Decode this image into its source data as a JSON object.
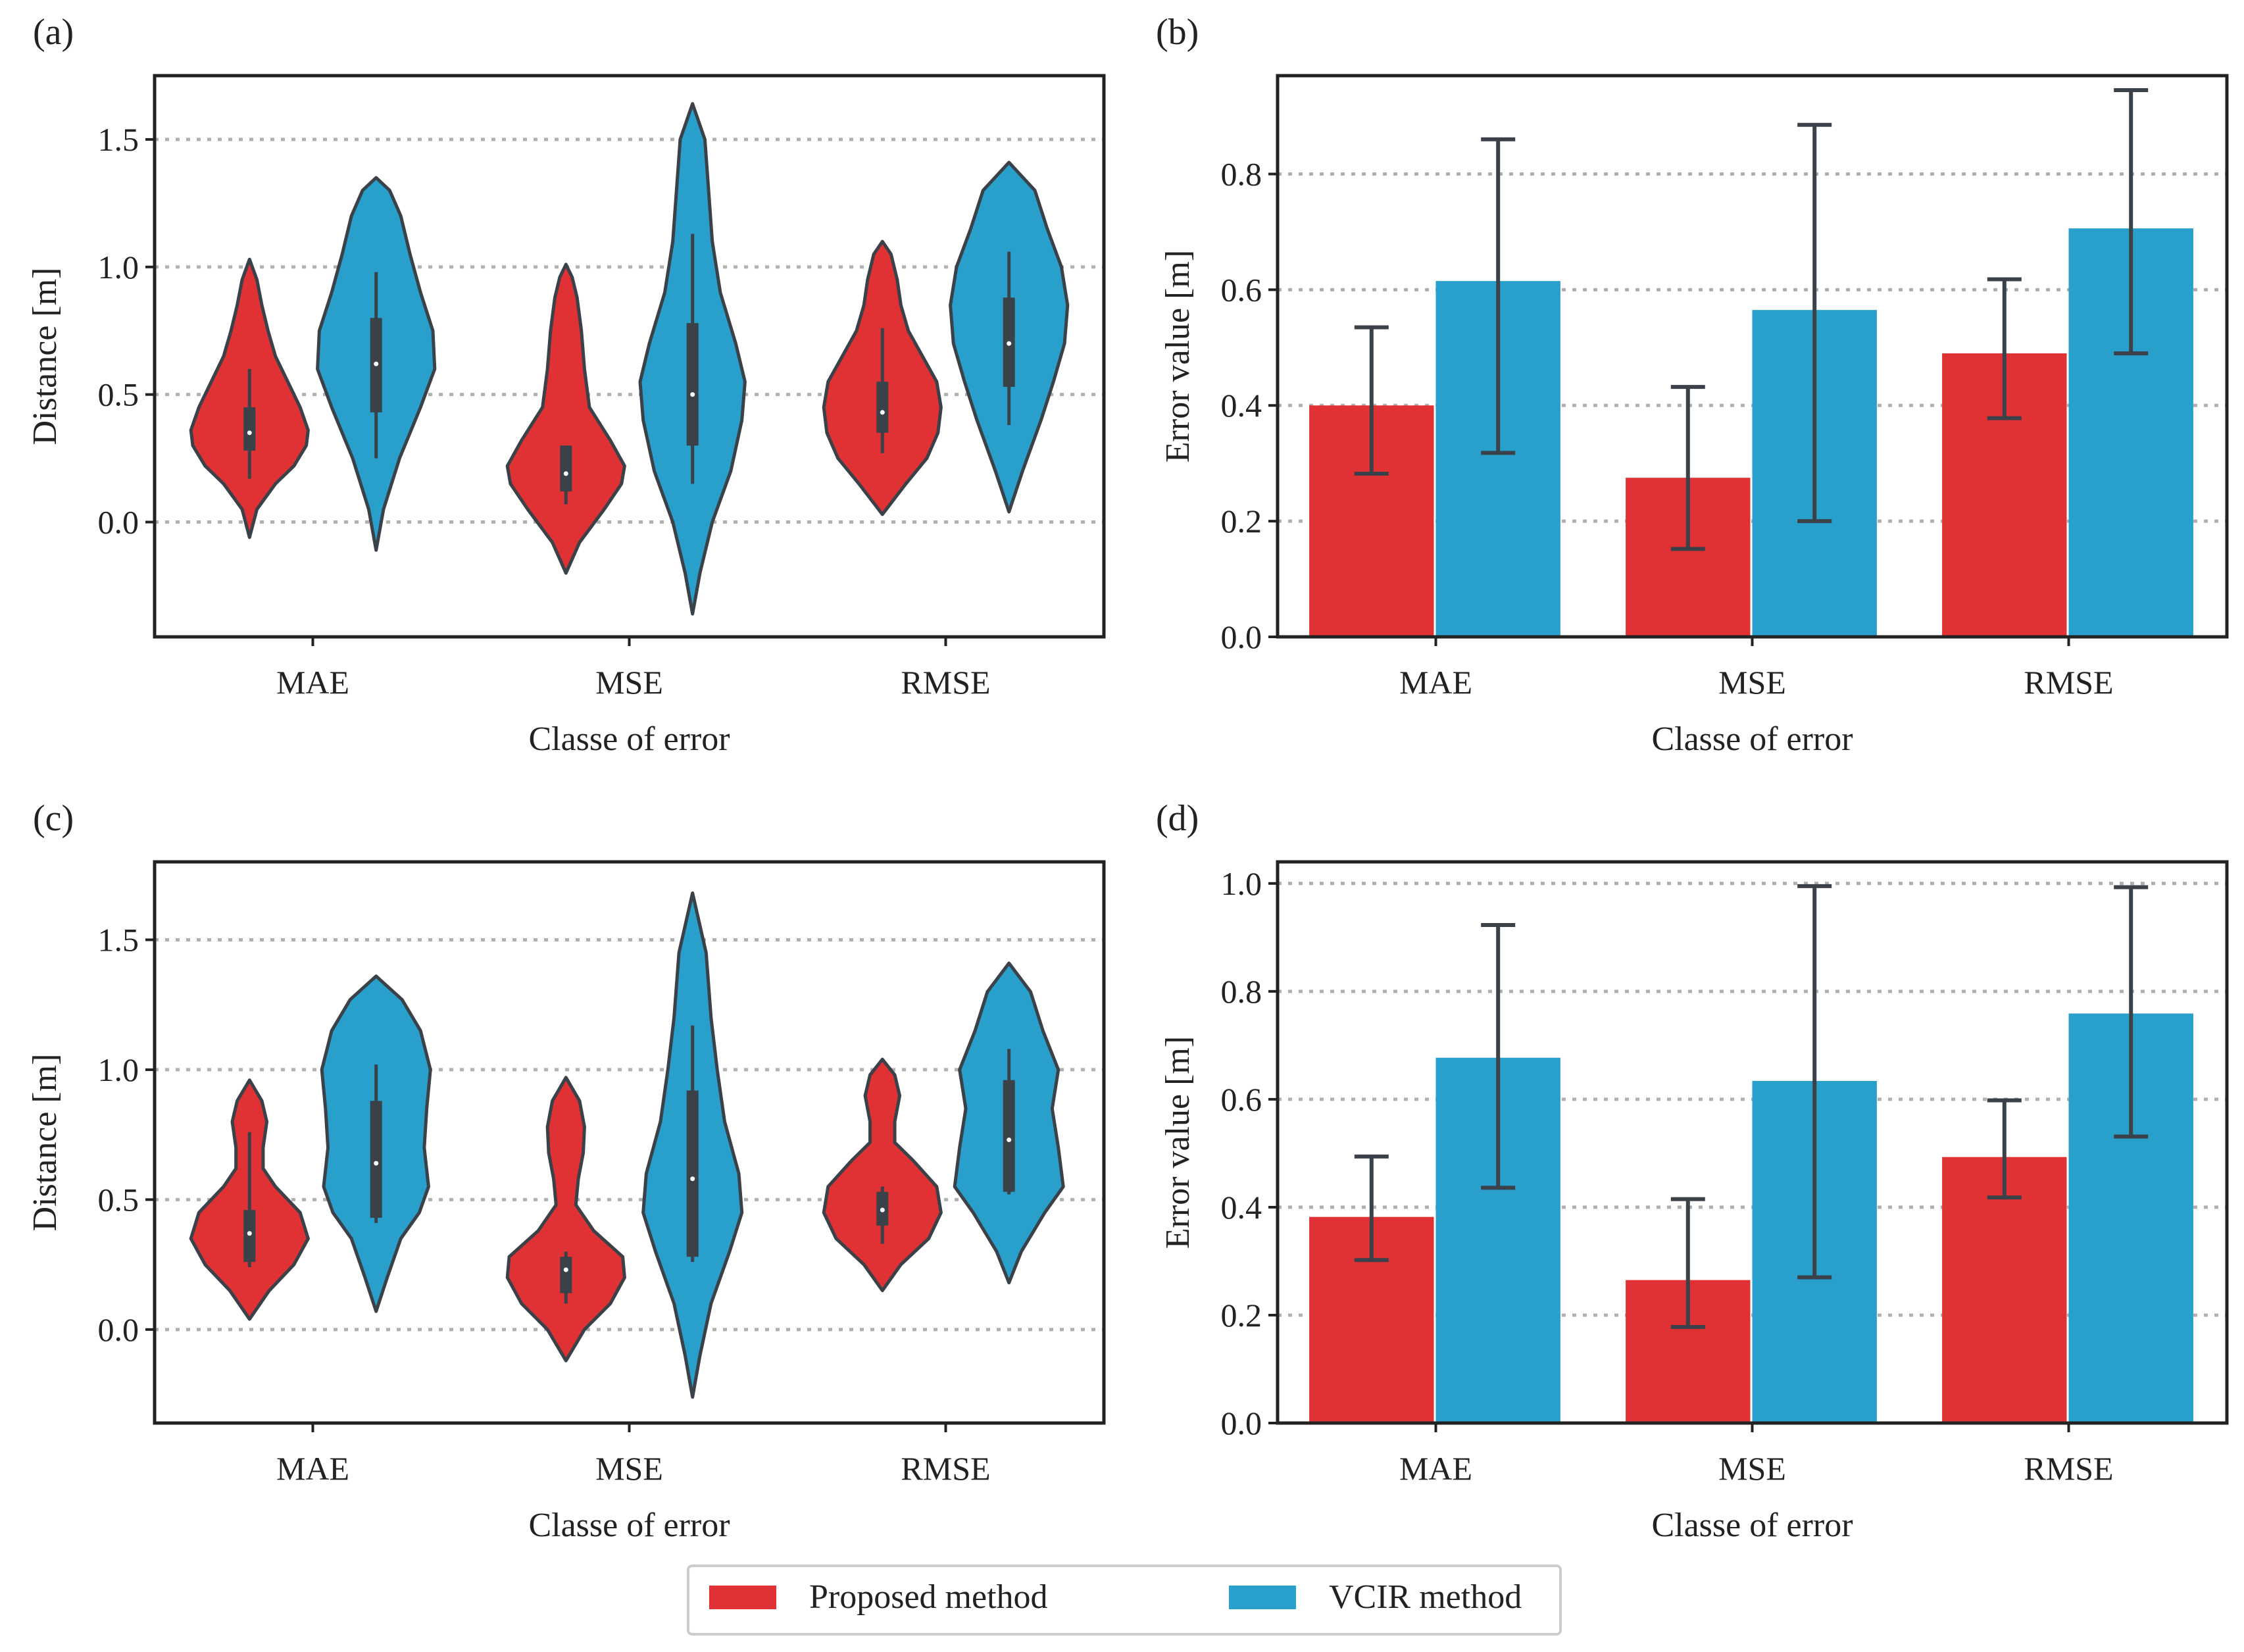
{
  "colors": {
    "proposed": "#e03134",
    "vcir": "#29a0cc",
    "outline": "#3b4148",
    "grid": "#b0b0b0",
    "frame": "#222222"
  },
  "legend": {
    "items": [
      {
        "label": "Proposed method",
        "color": "#e03134"
      },
      {
        "label": "VCIR method",
        "color": "#29a0cc"
      }
    ]
  },
  "chart_data": [
    {
      "id": "a",
      "panel_label": "(a)",
      "type": "violin",
      "categories": [
        "MAE",
        "MSE",
        "RMSE"
      ],
      "xlabel": "Classe of error",
      "ylabel": "Distance [m]",
      "ylim": [
        -0.45,
        1.75
      ],
      "yticks": [
        "0.0",
        "0.5",
        "1.0",
        "1.5"
      ],
      "grid": "horizontal dotted",
      "series": [
        {
          "name": "Proposed method",
          "violins": [
            {
              "shape": [
                [
                  -0.06,
                  0
                ],
                [
                  0.05,
                  0.12
                ],
                [
                  0.15,
                  0.42
                ],
                [
                  0.22,
                  0.72
                ],
                [
                  0.3,
                  0.92
                ],
                [
                  0.36,
                  0.95
                ],
                [
                  0.45,
                  0.82
                ],
                [
                  0.55,
                  0.62
                ],
                [
                  0.65,
                  0.42
                ],
                [
                  0.75,
                  0.3
                ],
                [
                  0.85,
                  0.2
                ],
                [
                  0.95,
                  0.12
                ],
                [
                  1.03,
                  0
                ]
              ],
              "median": 0.35,
              "q1": 0.28,
              "q3": 0.45,
              "whisker_low": 0.17,
              "whisker_high": 0.6
            },
            {
              "shape": [
                [
                  -0.2,
                  0
                ],
                [
                  -0.08,
                  0.22
                ],
                [
                  0.05,
                  0.62
                ],
                [
                  0.15,
                  0.9
                ],
                [
                  0.22,
                  0.95
                ],
                [
                  0.32,
                  0.72
                ],
                [
                  0.45,
                  0.38
                ],
                [
                  0.6,
                  0.3
                ],
                [
                  0.75,
                  0.25
                ],
                [
                  0.88,
                  0.18
                ],
                [
                  0.96,
                  0.1
                ],
                [
                  1.01,
                  0
                ]
              ],
              "median": 0.19,
              "q1": 0.12,
              "q3": 0.3,
              "whisker_low": 0.07,
              "whisker_high": 0.3
            },
            {
              "shape": [
                [
                  0.03,
                  0
                ],
                [
                  0.15,
                  0.38
                ],
                [
                  0.25,
                  0.72
                ],
                [
                  0.35,
                  0.9
                ],
                [
                  0.45,
                  0.95
                ],
                [
                  0.55,
                  0.88
                ],
                [
                  0.65,
                  0.65
                ],
                [
                  0.75,
                  0.42
                ],
                [
                  0.85,
                  0.3
                ],
                [
                  0.95,
                  0.24
                ],
                [
                  1.05,
                  0.14
                ],
                [
                  1.1,
                  0
                ]
              ],
              "median": 0.43,
              "q1": 0.35,
              "q3": 0.55,
              "whisker_low": 0.27,
              "whisker_high": 0.76
            }
          ]
        },
        {
          "name": "VCIR method",
          "violins": [
            {
              "shape": [
                [
                  -0.11,
                  0
                ],
                [
                  0.05,
                  0.12
                ],
                [
                  0.25,
                  0.38
                ],
                [
                  0.45,
                  0.72
                ],
                [
                  0.6,
                  0.95
                ],
                [
                  0.75,
                  0.92
                ],
                [
                  0.9,
                  0.72
                ],
                [
                  1.05,
                  0.55
                ],
                [
                  1.2,
                  0.4
                ],
                [
                  1.3,
                  0.22
                ],
                [
                  1.35,
                  0
                ]
              ],
              "median": 0.62,
              "q1": 0.43,
              "q3": 0.8,
              "whisker_low": 0.25,
              "whisker_high": 0.98
            },
            {
              "shape": [
                [
                  -0.36,
                  0
                ],
                [
                  -0.2,
                  0.12
                ],
                [
                  0.0,
                  0.32
                ],
                [
                  0.2,
                  0.62
                ],
                [
                  0.4,
                  0.8
                ],
                [
                  0.55,
                  0.85
                ],
                [
                  0.7,
                  0.7
                ],
                [
                  0.9,
                  0.45
                ],
                [
                  1.1,
                  0.32
                ],
                [
                  1.3,
                  0.26
                ],
                [
                  1.5,
                  0.2
                ],
                [
                  1.64,
                  0
                ]
              ],
              "median": 0.5,
              "q1": 0.3,
              "q3": 0.78,
              "whisker_low": 0.15,
              "whisker_high": 1.13
            },
            {
              "shape": [
                [
                  0.04,
                  0
                ],
                [
                  0.2,
                  0.22
                ],
                [
                  0.4,
                  0.52
                ],
                [
                  0.55,
                  0.72
                ],
                [
                  0.7,
                  0.9
                ],
                [
                  0.85,
                  0.95
                ],
                [
                  1.0,
                  0.85
                ],
                [
                  1.15,
                  0.62
                ],
                [
                  1.3,
                  0.42
                ],
                [
                  1.41,
                  0
                ]
              ],
              "median": 0.7,
              "q1": 0.53,
              "q3": 0.88,
              "whisker_low": 0.38,
              "whisker_high": 1.06
            }
          ]
        }
      ]
    },
    {
      "id": "b",
      "panel_label": "(b)",
      "type": "bar",
      "categories": [
        "MAE",
        "MSE",
        "RMSE"
      ],
      "xlabel": "Classe of error",
      "ylabel": "Error value [m]",
      "ylim": [
        0.0,
        0.97
      ],
      "yticks": [
        "0.0",
        "0.2",
        "0.4",
        "0.6",
        "0.8"
      ],
      "grid": "horizontal dotted",
      "series": [
        {
          "name": "Proposed method",
          "values": [
            0.4,
            0.275,
            0.49
          ],
          "err_low": [
            0.282,
            0.152,
            0.378
          ],
          "err_high": [
            0.535,
            0.432,
            0.618
          ]
        },
        {
          "name": "VCIR method",
          "values": [
            0.615,
            0.565,
            0.706
          ],
          "err_low": [
            0.318,
            0.2,
            0.49
          ],
          "err_high": [
            0.86,
            0.885,
            0.945
          ]
        }
      ]
    },
    {
      "id": "c",
      "panel_label": "(c)",
      "type": "violin",
      "categories": [
        "MAE",
        "MSE",
        "RMSE"
      ],
      "xlabel": "Classe of error",
      "ylabel": "Distance [m]",
      "ylim": [
        -0.36,
        1.8
      ],
      "yticks": [
        "0.0",
        "0.5",
        "1.0",
        "1.5"
      ],
      "grid": "horizontal dotted",
      "series": [
        {
          "name": "Proposed method",
          "violins": [
            {
              "shape": [
                [
                  0.04,
                  0
                ],
                [
                  0.15,
                  0.32
                ],
                [
                  0.25,
                  0.72
                ],
                [
                  0.35,
                  0.95
                ],
                [
                  0.45,
                  0.82
                ],
                [
                  0.55,
                  0.42
                ],
                [
                  0.62,
                  0.22
                ],
                [
                  0.7,
                  0.22
                ],
                [
                  0.8,
                  0.28
                ],
                [
                  0.88,
                  0.2
                ],
                [
                  0.96,
                  0
                ]
              ],
              "median": 0.37,
              "q1": 0.26,
              "q3": 0.46,
              "whisker_low": 0.24,
              "whisker_high": 0.76
            },
            {
              "shape": [
                [
                  -0.12,
                  0
                ],
                [
                  0.0,
                  0.3
                ],
                [
                  0.1,
                  0.72
                ],
                [
                  0.2,
                  0.95
                ],
                [
                  0.28,
                  0.92
                ],
                [
                  0.38,
                  0.45
                ],
                [
                  0.48,
                  0.16
                ],
                [
                  0.58,
                  0.2
                ],
                [
                  0.68,
                  0.28
                ],
                [
                  0.78,
                  0.3
                ],
                [
                  0.88,
                  0.22
                ],
                [
                  0.97,
                  0
                ]
              ],
              "median": 0.23,
              "q1": 0.14,
              "q3": 0.28,
              "whisker_low": 0.1,
              "whisker_high": 0.3
            },
            {
              "shape": [
                [
                  0.15,
                  0
                ],
                [
                  0.25,
                  0.3
                ],
                [
                  0.35,
                  0.75
                ],
                [
                  0.45,
                  0.95
                ],
                [
                  0.55,
                  0.88
                ],
                [
                  0.65,
                  0.5
                ],
                [
                  0.72,
                  0.2
                ],
                [
                  0.8,
                  0.2
                ],
                [
                  0.9,
                  0.28
                ],
                [
                  0.98,
                  0.2
                ],
                [
                  1.04,
                  0
                ]
              ],
              "median": 0.46,
              "q1": 0.4,
              "q3": 0.53,
              "whisker_low": 0.33,
              "whisker_high": 0.55
            }
          ]
        },
        {
          "name": "VCIR method",
          "violins": [
            {
              "shape": [
                [
                  0.07,
                  0
                ],
                [
                  0.2,
                  0.18
                ],
                [
                  0.35,
                  0.4
                ],
                [
                  0.45,
                  0.7
                ],
                [
                  0.55,
                  0.85
                ],
                [
                  0.7,
                  0.78
                ],
                [
                  0.85,
                  0.82
                ],
                [
                  1.0,
                  0.88
                ],
                [
                  1.15,
                  0.72
                ],
                [
                  1.27,
                  0.42
                ],
                [
                  1.36,
                  0
                ]
              ],
              "median": 0.64,
              "q1": 0.43,
              "q3": 0.88,
              "whisker_low": 0.41,
              "whisker_high": 1.02
            },
            {
              "shape": [
                [
                  -0.26,
                  0
                ],
                [
                  -0.1,
                  0.12
                ],
                [
                  0.1,
                  0.3
                ],
                [
                  0.3,
                  0.6
                ],
                [
                  0.45,
                  0.8
                ],
                [
                  0.6,
                  0.75
                ],
                [
                  0.8,
                  0.52
                ],
                [
                  1.0,
                  0.4
                ],
                [
                  1.2,
                  0.3
                ],
                [
                  1.45,
                  0.22
                ],
                [
                  1.68,
                  0
                ]
              ],
              "median": 0.58,
              "q1": 0.28,
              "q3": 0.92,
              "whisker_low": 0.26,
              "whisker_high": 1.17
            },
            {
              "shape": [
                [
                  0.18,
                  0
                ],
                [
                  0.3,
                  0.2
                ],
                [
                  0.45,
                  0.58
                ],
                [
                  0.55,
                  0.88
                ],
                [
                  0.7,
                  0.8
                ],
                [
                  0.85,
                  0.7
                ],
                [
                  1.0,
                  0.8
                ],
                [
                  1.15,
                  0.55
                ],
                [
                  1.3,
                  0.35
                ],
                [
                  1.41,
                  0
                ]
              ],
              "median": 0.73,
              "q1": 0.53,
              "q3": 0.96,
              "whisker_low": 0.52,
              "whisker_high": 1.08
            }
          ]
        }
      ]
    },
    {
      "id": "d",
      "panel_label": "(d)",
      "type": "bar",
      "categories": [
        "MAE",
        "MSE",
        "RMSE"
      ],
      "xlabel": "Classe of error",
      "ylabel": "Error value [m]",
      "ylim": [
        0.0,
        1.04
      ],
      "yticks": [
        "0.0",
        "0.2",
        "0.4",
        "0.6",
        "0.8",
        "1.0"
      ],
      "grid": "horizontal dotted",
      "series": [
        {
          "name": "Proposed method",
          "values": [
            0.382,
            0.265,
            0.493
          ],
          "err_low": [
            0.302,
            0.178,
            0.418
          ],
          "err_high": [
            0.494,
            0.415,
            0.598
          ]
        },
        {
          "name": "VCIR method",
          "values": [
            0.677,
            0.634,
            0.759
          ],
          "err_low": [
            0.436,
            0.27,
            0.531
          ],
          "err_high": [
            0.923,
            0.995,
            0.993
          ]
        }
      ]
    }
  ]
}
